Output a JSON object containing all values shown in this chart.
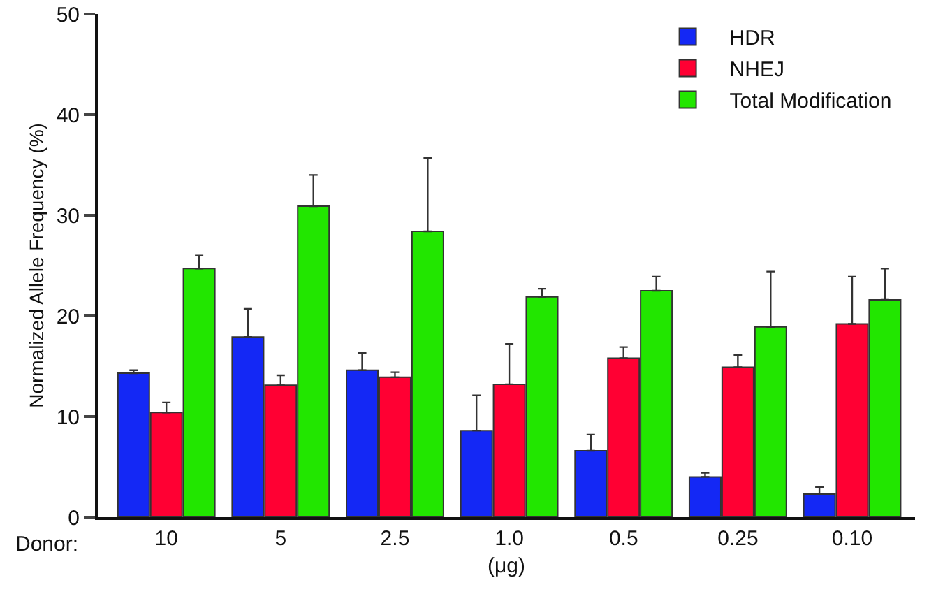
{
  "chart_data": {
    "type": "bar",
    "categories": [
      "10",
      "5",
      "2.5",
      "1.0",
      "0.5",
      "0.25",
      "0.10"
    ],
    "xlabel": "(μg)",
    "ylabel": "Normalized Allele Frequency (%)",
    "annotations": [
      "Donor:"
    ],
    "series": [
      {
        "name": "HDR",
        "color": "#1428f5",
        "values": [
          14.3,
          17.9,
          14.6,
          8.6,
          6.6,
          4.0,
          2.3
        ],
        "errors": [
          [
            14.3,
            14.6
          ],
          [
            17.9,
            20.7
          ],
          [
            14.6,
            16.3
          ],
          [
            8.6,
            12.1
          ],
          [
            6.6,
            8.2
          ],
          [
            4.0,
            4.4
          ],
          [
            2.3,
            3.0
          ]
        ]
      },
      {
        "name": "NHEJ",
        "color": "#ff0033",
        "values": [
          10.4,
          13.1,
          13.9,
          13.2,
          15.8,
          14.9,
          19.2
        ],
        "errors": [
          [
            10.4,
            11.4
          ],
          [
            13.1,
            14.1
          ],
          [
            13.9,
            14.4
          ],
          [
            13.2,
            17.2
          ],
          [
            15.8,
            16.9
          ],
          [
            14.9,
            16.1
          ],
          [
            19.2,
            23.9
          ]
        ]
      },
      {
        "name": "Total Modification",
        "color": "#22e600",
        "values": [
          24.7,
          30.9,
          28.4,
          21.9,
          22.5,
          18.9,
          21.6
        ],
        "errors": [
          [
            24.7,
            26.0
          ],
          [
            30.9,
            34.0
          ],
          [
            28.4,
            35.7
          ],
          [
            21.9,
            22.7
          ],
          [
            22.5,
            23.9
          ],
          [
            18.9,
            24.4
          ],
          [
            21.6,
            24.7
          ]
        ]
      }
    ],
    "ylim": [
      0,
      50
    ],
    "yticks": [
      0,
      10,
      20,
      30,
      40,
      50
    ],
    "grid": false,
    "legend": "top right"
  }
}
